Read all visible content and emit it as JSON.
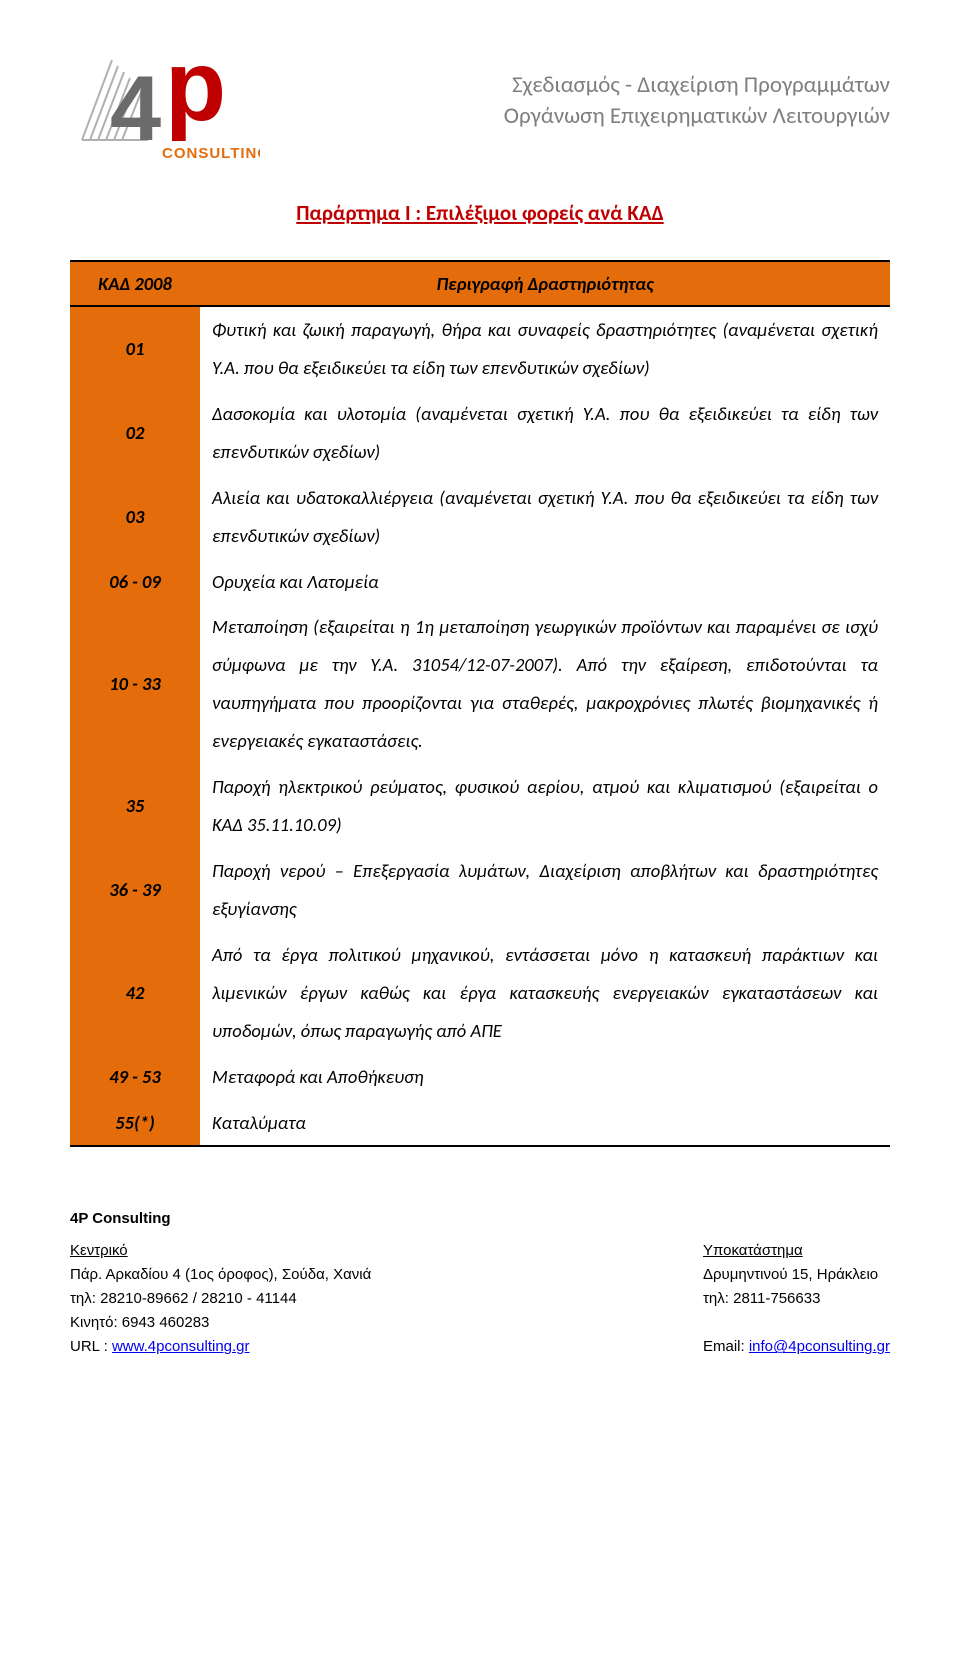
{
  "header": {
    "tagline_line1": "Σχεδιασμός - Διαχείριση Προγραμμάτων",
    "tagline_line2": "Οργάνωση Επιχειρηματικών Λειτουργιών",
    "logo_brand_suffix": "CONSULTING"
  },
  "document": {
    "title": "Παράρτημα Ι : Επιλέξιμοι φορείς ανά ΚΑΔ"
  },
  "table": {
    "header_code": "ΚΑΔ 2008",
    "header_desc": "Περιγραφή Δραστηριότητας",
    "rows": [
      {
        "code": "01",
        "desc": "Φυτική και ζωική παραγωγή, θήρα και συναφείς δραστηριότητες (αναμένεται σχετική Υ.Α. που θα εξειδικεύει τα είδη των επενδυτικών σχεδίων)"
      },
      {
        "code": "02",
        "desc": "Δασοκομία και υλοτομία (αναμένεται σχετική Υ.Α. που θα εξειδικεύει τα είδη των επενδυτικών σχεδίων)"
      },
      {
        "code": "03",
        "desc": "Αλιεία και υδατοκαλλιέργεια (αναμένεται σχετική Υ.Α. που θα εξειδικεύει τα είδη των επενδυτικών σχεδίων)"
      },
      {
        "code": "06 - 09",
        "desc": "Ορυχεία και Λατομεία"
      },
      {
        "code": "10 - 33",
        "desc": "Μεταποίηση (εξαιρείται η 1η μεταποίηση γεωργικών προϊόντων και παραμένει σε ισχύ σύμφωνα με την Υ.Α. 31054/12-07-2007). Από την εξαίρεση, επιδοτούνται τα ναυπηγήματα που προορίζονται για σταθερές, μακροχρόνιες πλωτές βιομηχανικές ή ενεργειακές εγκαταστάσεις."
      },
      {
        "code": "35",
        "desc": "Παροχή ηλεκτρικού ρεύματος, φυσικού αερίου, ατμού και κλιματισμού (εξαιρείται ο ΚΑΔ 35.11.10.09)"
      },
      {
        "code": "36 - 39",
        "desc": "Παροχή νερού – Επεξεργασία λυμάτων, Διαχείριση αποβλήτων και δραστηριότητες εξυγίανσης"
      },
      {
        "code": "42",
        "desc": "Από τα έργα πολιτικού μηχανικού, εντάσσεται μόνο η κατασκευή παράκτιων και λιμενικών έργων καθώς και έργα κατασκευής ενεργειακών εγκαταστάσεων και υποδομών, όπως παραγωγής από ΑΠΕ"
      },
      {
        "code": "49 - 53",
        "desc": "Μεταφορά και Αποθήκευση"
      },
      {
        "code": "55(*)",
        "desc": "Καταλύματα"
      }
    ]
  },
  "footer": {
    "company": "4P Consulting",
    "left_heading": "Κεντρικό",
    "left_address": "Πάρ. Αρκαδίου 4 (1ος όροφος), Σούδα, Χανιά",
    "left_tel": "τηλ: 28210-89662 / 28210 - 41144",
    "left_mobile": "Κινητό: 6943 460283",
    "left_url_label": "URL : ",
    "left_url": "www.4pconsulting.gr",
    "right_heading": "Υποκατάστημα",
    "right_address": "Δρυμηντινού 15, Ηράκλειο",
    "right_tel": "τηλ: 2811-756633",
    "right_email_label": "Email: ",
    "right_email": "info@4pconsulting.gr"
  },
  "colors": {
    "brand_red": "#c00000",
    "table_orange": "#e46c0a",
    "tagline_gray": "#7f7f7f",
    "link_blue": "#0000ee",
    "border_black": "#000000"
  }
}
